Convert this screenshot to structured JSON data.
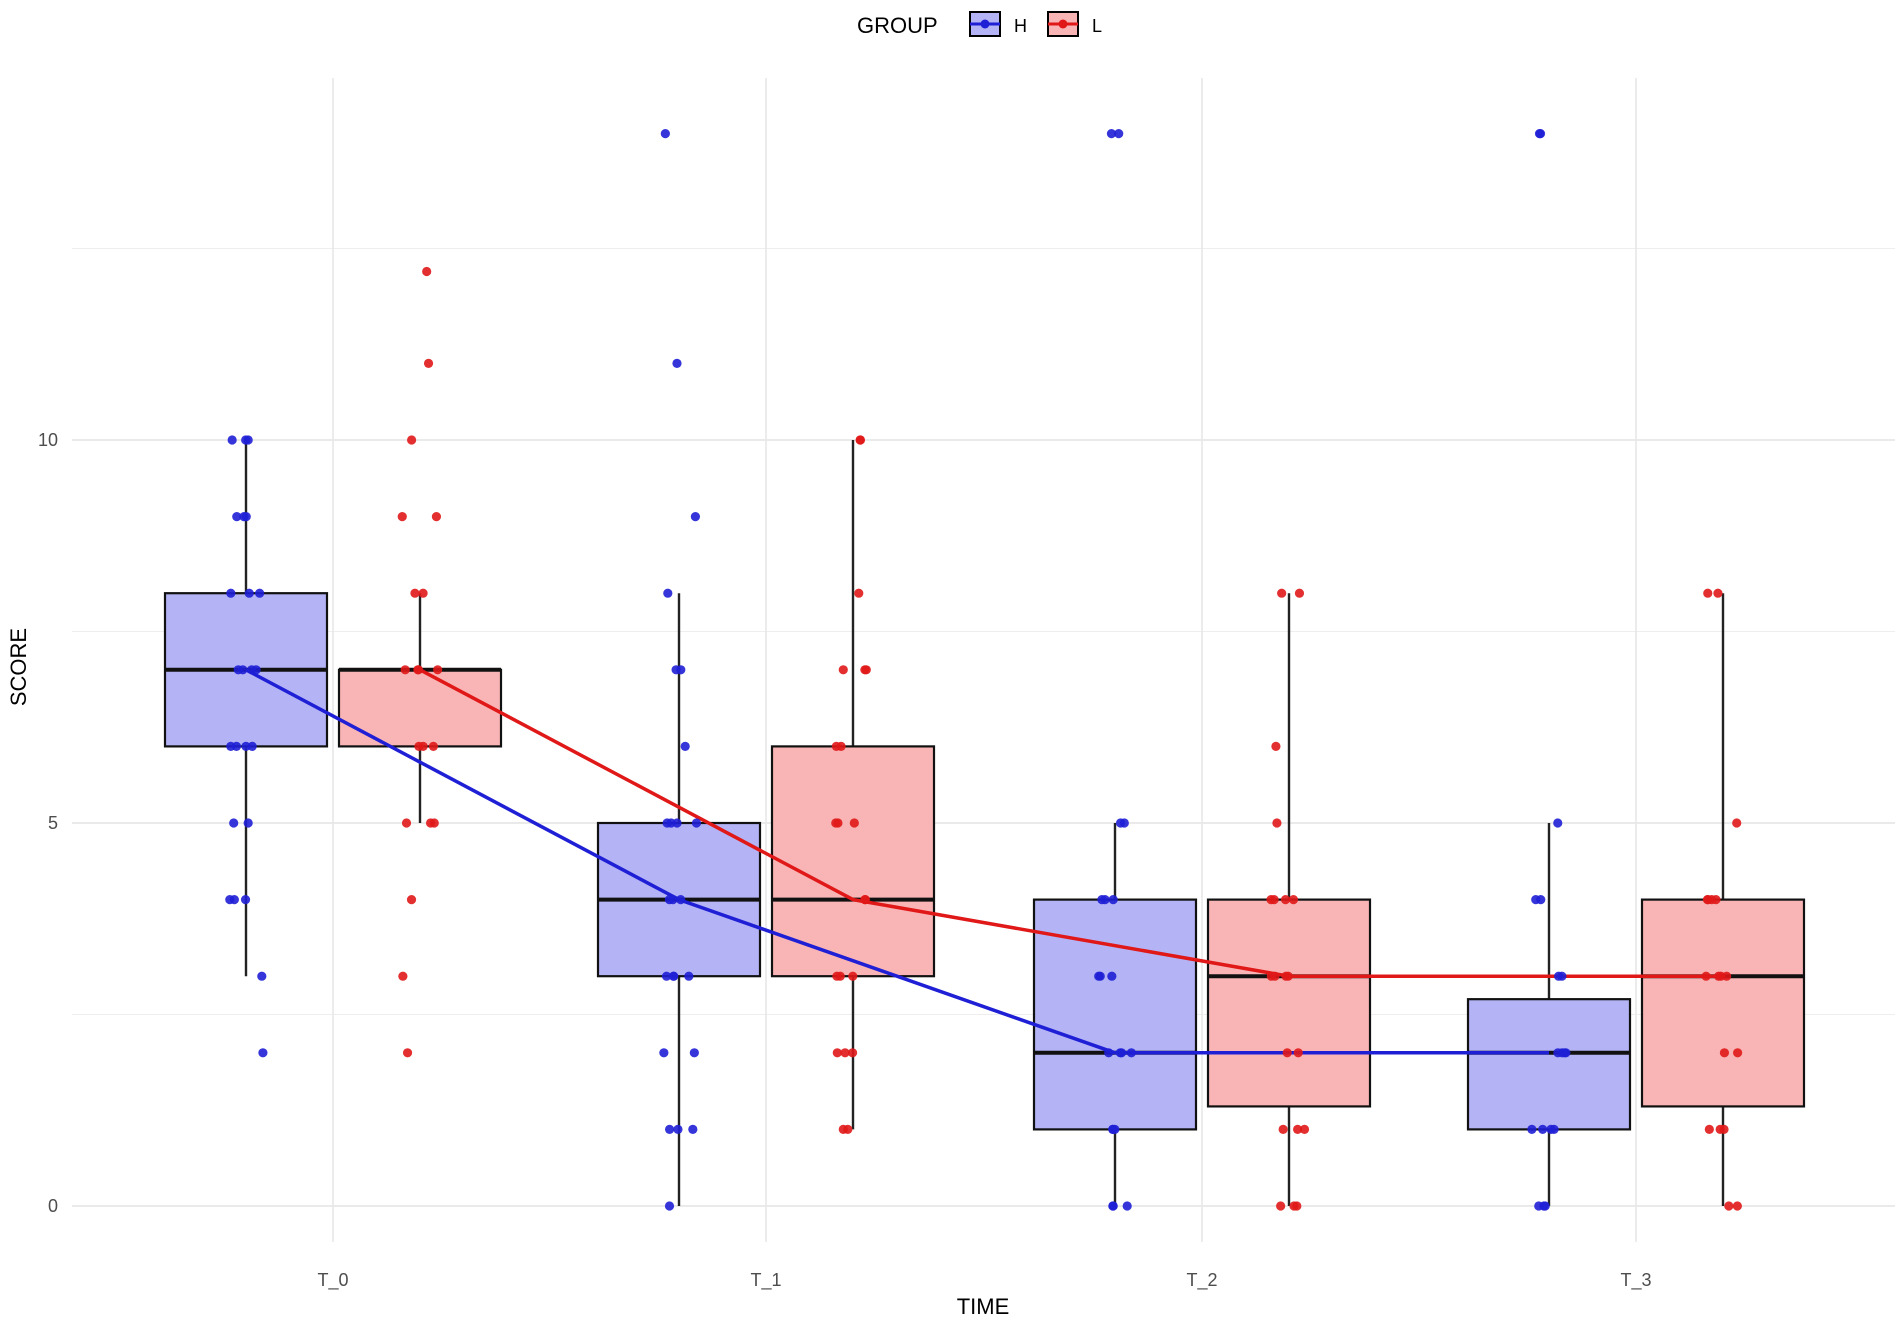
{
  "chart_data": {
    "type": "boxplot",
    "xlabel": "TIME",
    "ylabel": "SCORE",
    "categories": [
      "T_0",
      "T_1",
      "T_2",
      "T_3"
    ],
    "ylim": [
      -0.5,
      14.3
    ],
    "yticks": [
      0,
      5,
      10
    ],
    "grid": true,
    "legend": {
      "title": "GROUP",
      "position": "top"
    },
    "series": [
      {
        "name": "H",
        "color": "#1f1fd6",
        "fill": "#b3b3f5",
        "boxes": [
          {
            "category": "T_0",
            "min": 3,
            "q1": 6,
            "median": 7,
            "q3": 8,
            "max": 10
          },
          {
            "category": "T_1",
            "min": 0,
            "q1": 3,
            "median": 4,
            "q3": 5,
            "max": 8
          },
          {
            "category": "T_2",
            "min": 0,
            "q1": 1,
            "median": 2,
            "q3": 4,
            "max": 5
          },
          {
            "category": "T_3",
            "min": 0,
            "q1": 1,
            "median": 2,
            "q3": 2.7,
            "max": 5
          }
        ],
        "medians_line": [
          7,
          4,
          2,
          2
        ],
        "points": [
          {
            "category": "T_0",
            "values": [
              10,
              10,
              10,
              9,
              9,
              9,
              8,
              8,
              8,
              7,
              7,
              7,
              7,
              6,
              6,
              6,
              6,
              5,
              5,
              4,
              4,
              4,
              3,
              2
            ]
          },
          {
            "category": "T_1",
            "values": [
              14,
              11,
              9,
              8,
              7,
              7,
              6,
              5,
              5,
              5,
              5,
              4,
              4,
              4,
              3,
              3,
              3,
              3,
              2,
              2,
              1,
              1,
              1,
              0
            ]
          },
          {
            "category": "T_2",
            "values": [
              14,
              14,
              5,
              5,
              4,
              4,
              4,
              3,
              3,
              3,
              2,
              2,
              2,
              2,
              1,
              1,
              1,
              0,
              0,
              0
            ]
          },
          {
            "category": "T_3",
            "values": [
              14,
              14,
              5,
              4,
              4,
              3,
              3,
              2,
              2,
              2,
              2,
              1,
              1,
              1,
              1,
              0,
              0,
              0
            ]
          }
        ]
      },
      {
        "name": "L",
        "color": "#e01818",
        "fill": "#f9b5b5",
        "boxes": [
          {
            "category": "T_0",
            "min": 5,
            "q1": 6,
            "median": 7,
            "q3": 7,
            "max": 8
          },
          {
            "category": "T_1",
            "min": 1,
            "q1": 3,
            "median": 4,
            "q3": 6,
            "max": 10
          },
          {
            "category": "T_2",
            "min": 0,
            "q1": 1.3,
            "median": 3,
            "q3": 4,
            "max": 8
          },
          {
            "category": "T_3",
            "min": 0,
            "q1": 1.3,
            "median": 3,
            "q3": 4,
            "max": 8
          }
        ],
        "medians_line": [
          7,
          4,
          3,
          3
        ],
        "points": [
          {
            "category": "T_0",
            "values": [
              12.2,
              11,
              10,
              9,
              9,
              8,
              8,
              7,
              7,
              7,
              7,
              6,
              6,
              6,
              5,
              5,
              5,
              4,
              3,
              2
            ]
          },
          {
            "category": "T_1",
            "values": [
              10,
              10,
              8,
              7,
              7,
              7,
              6,
              6,
              5,
              5,
              5,
              4,
              4,
              3,
              3,
              3,
              2,
              2,
              2,
              1,
              1
            ]
          },
          {
            "category": "T_2",
            "values": [
              8,
              8,
              6,
              5,
              4,
              4,
              4,
              4,
              3,
              3,
              3,
              3,
              2,
              2,
              1,
              1,
              1,
              0,
              0,
              0
            ]
          },
          {
            "category": "T_3",
            "values": [
              8,
              8,
              5,
              4,
              4,
              4,
              4,
              3,
              3,
              3,
              3,
              2,
              2,
              1,
              1,
              1,
              0,
              0
            ]
          }
        ]
      }
    ]
  }
}
